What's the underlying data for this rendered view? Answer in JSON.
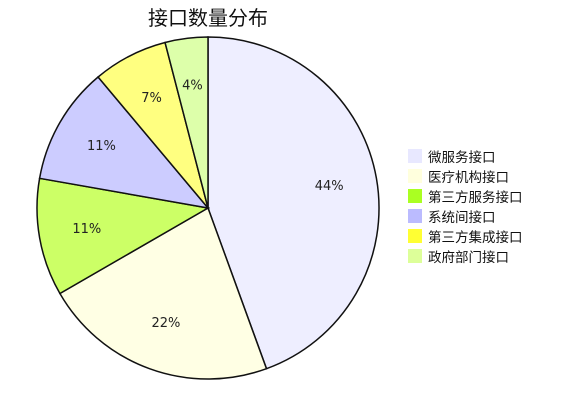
{
  "chart_data": {
    "type": "pie",
    "title": "接口数量分布",
    "slices": [
      {
        "name": "微服务接口",
        "value": 44,
        "label": "44%",
        "color": "#eeeeff"
      },
      {
        "name": "医疗机构接口",
        "value": 22,
        "label": "22%",
        "color": "#ffffe4"
      },
      {
        "name": "第三方服务接口",
        "value": 11,
        "label": "11%",
        "color": "#ccff66"
      },
      {
        "name": "系统间接口",
        "value": 11,
        "label": "11%",
        "color": "#ccccff"
      },
      {
        "name": "第三方集成接口",
        "value": 7,
        "label": "7%",
        "color": "#ffff80"
      },
      {
        "name": "政府部门接口",
        "value": 4,
        "label": "4%",
        "color": "#ddffaa"
      }
    ],
    "legend": {
      "placement": "right",
      "entries": [
        {
          "name": "微服务接口",
          "color": "#e8e8ff"
        },
        {
          "name": "医疗机构接口",
          "color": "#ffffdd"
        },
        {
          "name": "第三方服务接口",
          "color": "#aaff22"
        },
        {
          "name": "系统间接口",
          "color": "#bbbbff"
        },
        {
          "name": "第三方集成接口",
          "color": "#ffff33"
        },
        {
          "name": "政府部门接口",
          "color": "#ddff99"
        }
      ]
    },
    "start_angle": "top",
    "direction": "clockwise"
  }
}
